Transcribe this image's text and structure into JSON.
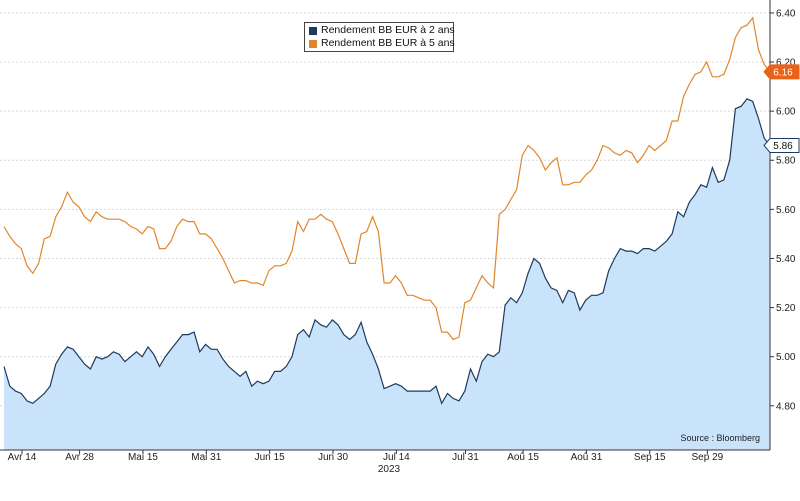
{
  "chart_data": {
    "type": "line",
    "title": "",
    "xlabel": "",
    "ylabel": "",
    "year_label": "2023",
    "source": "Source : Bloomberg",
    "ylim": [
      4.62,
      6.42
    ],
    "yticks": [
      "4.80",
      "5.00",
      "5.20",
      "5.40",
      "5.60",
      "5.80",
      "6.00",
      "6.20",
      "6.40"
    ],
    "x_tick_labels": [
      "Avr 14",
      "Avr 28",
      "Mai 15",
      "Mai 31",
      "Jun 15",
      "Jun 30",
      "Jul 14",
      "Jul 31",
      "Aoû 15",
      "Aoû 31",
      "Sep 15",
      "Sep 29"
    ],
    "grid": "horizontal",
    "legend_position": "top-center",
    "series": [
      {
        "name": "Rendement BB EUR à 2 ans",
        "color": "#1f3a5f",
        "fill": "#c9e3fb",
        "style": "area",
        "last_label": "5.86",
        "values": [
          4.96,
          4.88,
          4.86,
          4.85,
          4.82,
          4.81,
          4.83,
          4.85,
          4.88,
          4.97,
          5.01,
          5.04,
          5.03,
          5.0,
          4.97,
          4.95,
          5.0,
          4.99,
          5.0,
          5.02,
          5.01,
          4.98,
          5.0,
          5.02,
          5.0,
          5.04,
          5.01,
          4.96,
          5.0,
          5.03,
          5.06,
          5.09,
          5.09,
          5.1,
          5.02,
          5.05,
          5.03,
          5.03,
          4.99,
          4.96,
          4.94,
          4.92,
          4.94,
          4.88,
          4.9,
          4.89,
          4.9,
          4.94,
          4.94,
          4.96,
          5.0,
          5.09,
          5.11,
          5.08,
          5.15,
          5.13,
          5.12,
          5.15,
          5.13,
          5.09,
          5.07,
          5.09,
          5.14,
          5.06,
          5.01,
          4.95,
          4.87,
          4.88,
          4.89,
          4.88,
          4.86,
          4.86,
          4.86,
          4.86,
          4.86,
          4.88,
          4.81,
          4.85,
          4.83,
          4.82,
          4.86,
          4.95,
          4.9,
          4.98,
          5.01,
          5.0,
          5.02,
          5.21,
          5.24,
          5.22,
          5.26,
          5.34,
          5.4,
          5.38,
          5.32,
          5.28,
          5.27,
          5.22,
          5.27,
          5.26,
          5.19,
          5.23,
          5.25,
          5.25,
          5.26,
          5.35,
          5.4,
          5.44,
          5.43,
          5.43,
          5.42,
          5.44,
          5.44,
          5.43,
          5.45,
          5.47,
          5.5,
          5.59,
          5.57,
          5.63,
          5.66,
          5.7,
          5.69,
          5.77,
          5.71,
          5.72,
          5.8,
          6.01,
          6.02,
          6.05,
          6.04,
          5.97,
          5.89,
          5.86
        ]
      },
      {
        "name": "Rendement BB EUR à 5 ans",
        "color": "#e0862c",
        "style": "line",
        "last_label": "6.16",
        "values": [
          5.53,
          5.49,
          5.46,
          5.44,
          5.37,
          5.34,
          5.38,
          5.48,
          5.49,
          5.57,
          5.61,
          5.67,
          5.63,
          5.61,
          5.57,
          5.55,
          5.59,
          5.57,
          5.56,
          5.56,
          5.56,
          5.55,
          5.53,
          5.52,
          5.5,
          5.53,
          5.52,
          5.44,
          5.44,
          5.47,
          5.53,
          5.56,
          5.55,
          5.55,
          5.5,
          5.5,
          5.48,
          5.44,
          5.4,
          5.35,
          5.3,
          5.31,
          5.31,
          5.3,
          5.3,
          5.29,
          5.35,
          5.37,
          5.37,
          5.38,
          5.43,
          5.55,
          5.51,
          5.56,
          5.56,
          5.58,
          5.56,
          5.55,
          5.5,
          5.44,
          5.38,
          5.38,
          5.5,
          5.51,
          5.57,
          5.51,
          5.3,
          5.3,
          5.33,
          5.3,
          5.25,
          5.25,
          5.24,
          5.23,
          5.23,
          5.2,
          5.1,
          5.1,
          5.07,
          5.08,
          5.22,
          5.23,
          5.28,
          5.33,
          5.3,
          5.28,
          5.58,
          5.6,
          5.64,
          5.68,
          5.82,
          5.86,
          5.84,
          5.81,
          5.76,
          5.79,
          5.81,
          5.7,
          5.7,
          5.71,
          5.71,
          5.74,
          5.76,
          5.8,
          5.86,
          5.85,
          5.83,
          5.82,
          5.84,
          5.83,
          5.79,
          5.82,
          5.86,
          5.84,
          5.86,
          5.88,
          5.96,
          5.96,
          6.06,
          6.11,
          6.15,
          6.16,
          6.2,
          6.14,
          6.14,
          6.15,
          6.21,
          6.3,
          6.34,
          6.35,
          6.38,
          6.25,
          6.19,
          6.16
        ]
      }
    ]
  }
}
